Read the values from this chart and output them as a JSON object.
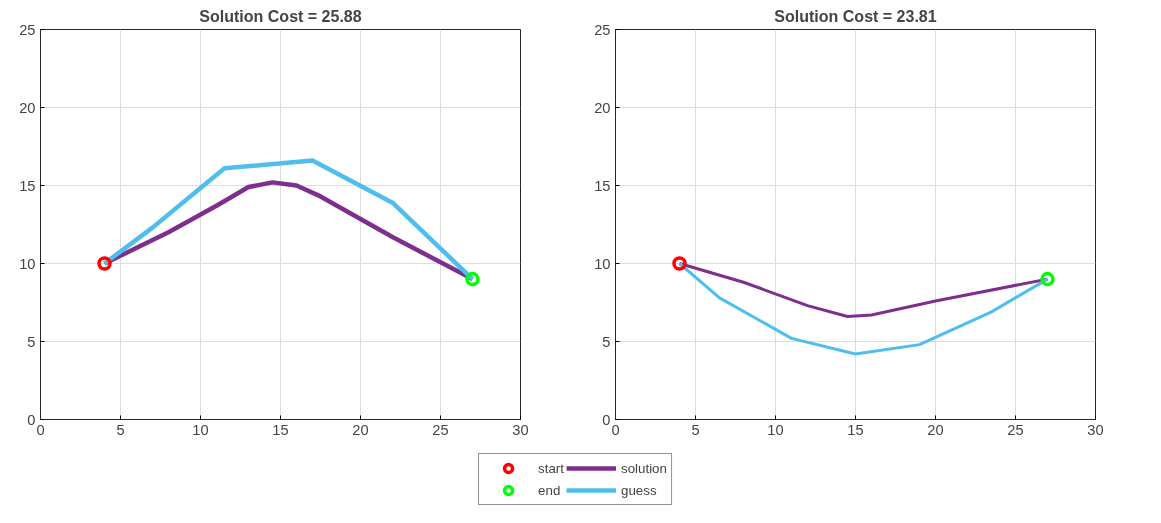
{
  "chart_data": [
    {
      "type": "line",
      "title": "Solution Cost = 25.88",
      "xlim": [
        0,
        30
      ],
      "xticks": [
        0,
        5,
        10,
        15,
        20,
        25,
        30
      ],
      "ylim": [
        0,
        25
      ],
      "yticks": [
        0,
        5,
        10,
        15,
        20,
        25
      ],
      "grid": true,
      "legend": "bottom",
      "series": [
        {
          "name": "solution",
          "color": "#7e2f8e",
          "x": [
            4,
            8,
            11,
            13,
            14.5,
            16,
            17.5,
            22,
            27
          ],
          "values": [
            10,
            12,
            13.7,
            14.9,
            15.2,
            15,
            14.3,
            11.7,
            9
          ]
        },
        {
          "name": "guess",
          "color": "#4dbeee",
          "x": [
            4,
            7,
            11.5,
            17,
            22,
            27
          ],
          "values": [
            10,
            12.3,
            16.1,
            16.6,
            13.9,
            9
          ]
        },
        {
          "type": "scatter",
          "marker": "circle",
          "name": "start",
          "color": "#ff0000",
          "x": [
            4
          ],
          "values": [
            10
          ]
        },
        {
          "type": "scatter",
          "marker": "circle",
          "name": "end",
          "color": "#00ff00",
          "x": [
            27
          ],
          "values": [
            9
          ]
        }
      ]
    },
    {
      "type": "line",
      "title": "Solution Cost = 23.81",
      "xlim": [
        0,
        30
      ],
      "xticks": [
        0,
        5,
        10,
        15,
        20,
        25,
        30
      ],
      "ylim": [
        0,
        25
      ],
      "yticks": [
        0,
        5,
        10,
        15,
        20,
        25
      ],
      "grid": true,
      "series": [
        {
          "color": "#7e2f8e",
          "x": [
            4,
            8,
            12,
            14.5,
            16,
            20,
            27
          ],
          "values": [
            10,
            8.8,
            7.3,
            6.6,
            6.7,
            7.6,
            9
          ]
        },
        {
          "color": "#4dbeee",
          "x": [
            4,
            6.5,
            11,
            15,
            19,
            23.5,
            27
          ],
          "values": [
            10,
            7.8,
            5.2,
            4.2,
            4.8,
            6.9,
            9
          ]
        },
        {
          "type": "scatter",
          "marker": "circle",
          "color": "#ff0000",
          "x": [
            4
          ],
          "values": [
            10
          ]
        },
        {
          "type": "scatter",
          "marker": "circle",
          "color": "#00ff00",
          "x": [
            27
          ],
          "values": [
            9
          ]
        }
      ]
    }
  ]
}
